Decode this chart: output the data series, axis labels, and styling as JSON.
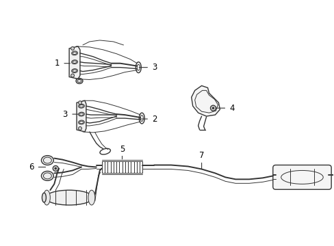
{
  "background_color": "#ffffff",
  "line_color": "#333333",
  "label_color": "#000000",
  "fig_width": 4.89,
  "fig_height": 3.6,
  "dpi": 100
}
